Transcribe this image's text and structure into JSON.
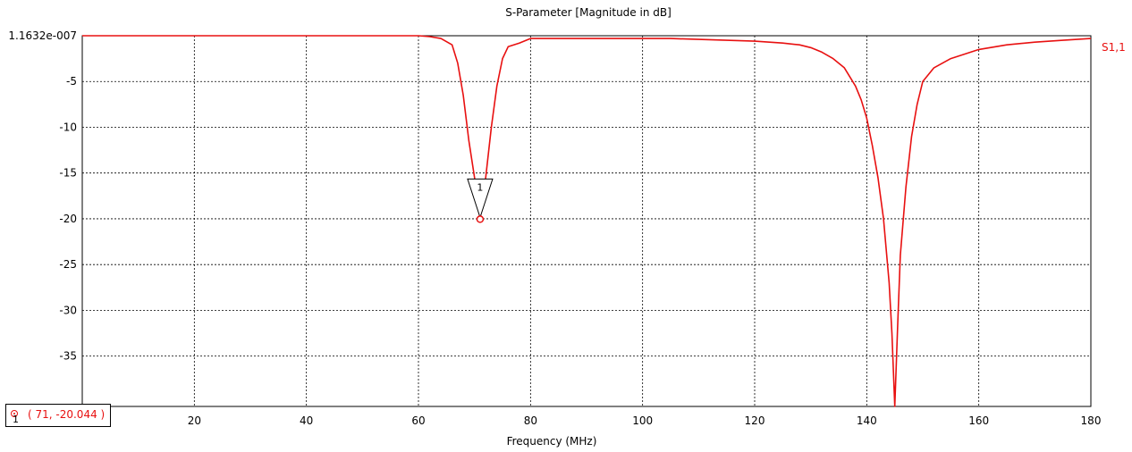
{
  "chart_data": {
    "type": "line",
    "title": "S-Parameter [Magnitude in dB]",
    "xlabel": "Frequency (MHz)",
    "ylabel": "",
    "xlim": [
      0,
      180
    ],
    "ylim": [
      -40.5,
      0.0
    ],
    "x_ticks": [
      20,
      40,
      60,
      80,
      100,
      120,
      140,
      160,
      180
    ],
    "x_tick_labels": [
      "20",
      "40",
      "60",
      "80",
      "100",
      "120",
      "140",
      "160",
      "180"
    ],
    "y_ticks": [
      0,
      -5,
      -10,
      -15,
      -20,
      -25,
      -30,
      -35
    ],
    "y_tick_labels": [
      "1.1632e-007",
      "-5",
      "-10",
      "-15",
      "-20",
      "-25",
      "-30",
      "-35"
    ],
    "grid": true,
    "series": [
      {
        "name": "S1,1",
        "color": "#e81010",
        "x": [
          0,
          10,
          20,
          30,
          40,
          50,
          55,
          60,
          62,
          64,
          66,
          67,
          68,
          69,
          70,
          70.5,
          71,
          71.5,
          72,
          73,
          74,
          75,
          76,
          78,
          80,
          85,
          90,
          95,
          100,
          105,
          110,
          115,
          120,
          125,
          128,
          130,
          132,
          134,
          136,
          138,
          139,
          140,
          141,
          142,
          143,
          144,
          144.5,
          145,
          145.5,
          146,
          147,
          148,
          149,
          150,
          152,
          155,
          160,
          165,
          170,
          175,
          180
        ],
        "y": [
          0.0,
          0.0,
          0.0,
          0.0,
          0.0,
          0.0,
          0.0,
          0.0,
          -0.1,
          -0.3,
          -1.0,
          -3.0,
          -6.5,
          -11.5,
          -15.5,
          -17.5,
          -20.0,
          -17.5,
          -15.5,
          -10.0,
          -5.5,
          -2.5,
          -1.2,
          -0.8,
          -0.3,
          -0.3,
          -0.3,
          -0.3,
          -0.3,
          -0.3,
          -0.4,
          -0.5,
          -0.6,
          -0.8,
          -1.0,
          -1.3,
          -1.8,
          -2.5,
          -3.5,
          -5.5,
          -7.0,
          -9.0,
          -12.0,
          -15.5,
          -20.0,
          -27.0,
          -32.5,
          -40.5,
          -32.0,
          -24.0,
          -16.5,
          -11.0,
          -7.5,
          -5.0,
          -3.5,
          -2.5,
          -1.5,
          -1.0,
          -0.7,
          -0.5,
          -0.3
        ]
      }
    ],
    "marker": {
      "index": "1",
      "x": 71,
      "y": -20.044,
      "readout": "( 71, -20.044 )"
    }
  }
}
